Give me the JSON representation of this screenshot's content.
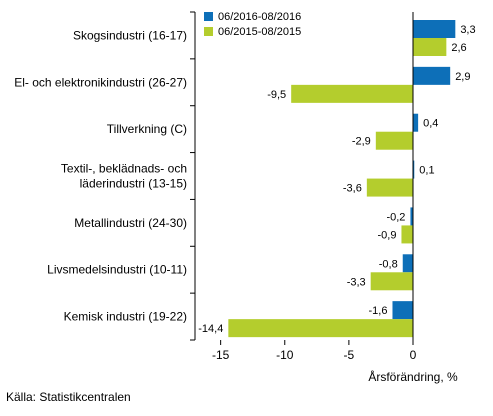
{
  "chart_data": {
    "type": "bar",
    "orientation": "horizontal",
    "categories": [
      "Skogsindustri (16-17)",
      "El- och elektronikindustri (26-27)",
      "Tillverkning (C)",
      "Textil-, beklädnads- och läderindustri (13-15)",
      "Metallindustri (24-30)",
      "Livsmedelsindustri (10-11)",
      "Kemisk industri (19-22)"
    ],
    "category_lines": [
      [
        "Skogsindustri (16-17)"
      ],
      [
        "El- och elektronikindustri (26-27)"
      ],
      [
        "Tillverkning (C)"
      ],
      [
        "Textil-, beklädnads- och",
        "läderindustri (13-15)"
      ],
      [
        "Metallindustri (24-30)"
      ],
      [
        "Livsmedelsindustri (10-11)"
      ],
      [
        "Kemisk industri (19-22)"
      ]
    ],
    "series": [
      {
        "name": "06/2016-08/2016",
        "color": "#0d6fb8",
        "values": [
          3.3,
          2.9,
          0.4,
          0.1,
          -0.2,
          -0.8,
          -1.6
        ],
        "labels": [
          "3,3",
          "2,9",
          "0,4",
          "0,1",
          "-0,2",
          "-0,8",
          "-1,6"
        ]
      },
      {
        "name": "06/2015-08/2015",
        "color": "#b4cd2d",
        "values": [
          2.6,
          -9.5,
          -2.9,
          -3.6,
          -0.9,
          -3.3,
          -14.4
        ],
        "labels": [
          "2,6",
          "-9,5",
          "-2,9",
          "-3,6",
          "-0,9",
          "-3,3",
          "-14,4"
        ]
      }
    ],
    "xlim": [
      -17,
      5
    ],
    "xticks": [
      -15,
      -10,
      -5,
      0
    ],
    "xtick_labels": [
      "-15",
      "-10",
      "-5",
      "0"
    ],
    "xlabel": "Årsförändring, %",
    "ylabel": "",
    "title": "",
    "legend_position": "top",
    "grid": false
  },
  "source": "Källa: Statistikcentralen"
}
